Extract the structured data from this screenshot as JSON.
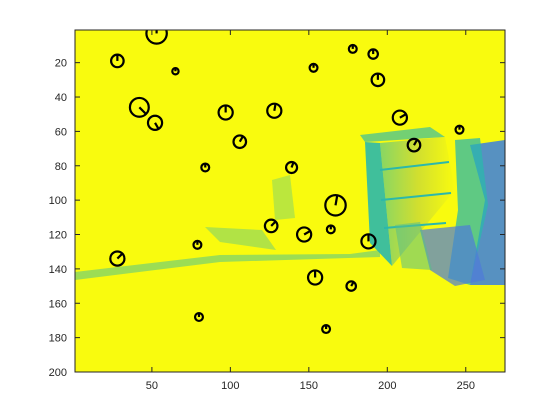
{
  "figure": {
    "background_color": "#ffffff",
    "axes_color": "#262626",
    "colormap_dominant": "#f9fb0e",
    "colormap_low": "#3e26a8",
    "colormap_mid": "#2bb8ab"
  },
  "chart_data": {
    "type": "heatmap",
    "title": "",
    "xlabel": "",
    "ylabel": "",
    "xlim": [
      1,
      275
    ],
    "ylim": [
      1,
      200
    ],
    "y_axis_direction": "reversed",
    "x_ticks": [
      50,
      100,
      150,
      200,
      250
    ],
    "x_tick_labels": [
      "50",
      "100",
      "150",
      "200",
      "250"
    ],
    "y_ticks": [
      20,
      40,
      60,
      80,
      100,
      120,
      140,
      160,
      180,
      200
    ],
    "y_tick_labels": [
      "20",
      "40",
      "60",
      "80",
      "100",
      "120",
      "140",
      "160",
      "180",
      "200"
    ],
    "grid": false,
    "image_content": "mostly yellow scaled image of a bedroom scene with a chest of drawers on the right; teal and blue patches near the dresser and lower right",
    "overlay": {
      "type": "scatter",
      "marker": "circle with radial orientation line",
      "marker_color": "#000000",
      "points": [
        {
          "x": 53,
          "y": 3,
          "r": 6.5,
          "angle": 90
        },
        {
          "x": 28,
          "y": 19,
          "r": 4,
          "angle": 90
        },
        {
          "x": 65,
          "y": 25,
          "r": 2,
          "angle": 90
        },
        {
          "x": 42,
          "y": 46,
          "r": 6,
          "angle": -45
        },
        {
          "x": 52,
          "y": 55,
          "r": 4.5,
          "angle": -60
        },
        {
          "x": 97,
          "y": 49,
          "r": 4.5,
          "angle": 90
        },
        {
          "x": 128,
          "y": 48,
          "r": 4.5,
          "angle": 80
        },
        {
          "x": 106,
          "y": 66,
          "r": 4,
          "angle": 60
        },
        {
          "x": 84,
          "y": 81,
          "r": 2.5,
          "angle": 90
        },
        {
          "x": 139,
          "y": 81,
          "r": 3.5,
          "angle": 70
        },
        {
          "x": 167,
          "y": 103,
          "r": 6.5,
          "angle": 80
        },
        {
          "x": 126,
          "y": 115,
          "r": 4,
          "angle": 45
        },
        {
          "x": 147,
          "y": 120,
          "r": 4.5,
          "angle": 30
        },
        {
          "x": 188,
          "y": 124,
          "r": 4.5,
          "angle": 90
        },
        {
          "x": 28,
          "y": 134,
          "r": 4.5,
          "angle": 45
        },
        {
          "x": 154,
          "y": 145,
          "r": 4.5,
          "angle": 90
        },
        {
          "x": 177,
          "y": 150,
          "r": 3,
          "angle": 60
        },
        {
          "x": 208,
          "y": 52,
          "r": 4.5,
          "angle": 30
        },
        {
          "x": 217,
          "y": 68,
          "r": 4,
          "angle": 60
        },
        {
          "x": 194,
          "y": 30,
          "r": 4,
          "angle": 90
        },
        {
          "x": 191,
          "y": 15,
          "r": 3,
          "angle": 90
        },
        {
          "x": 178,
          "y": 12,
          "r": 2.5,
          "angle": 90
        },
        {
          "x": 153,
          "y": 23,
          "r": 2.5,
          "angle": 90
        },
        {
          "x": 246,
          "y": 59,
          "r": 2.5,
          "angle": 90
        },
        {
          "x": 79,
          "y": 126,
          "r": 2.5,
          "angle": 90
        },
        {
          "x": 164,
          "y": 117,
          "r": 2.5,
          "angle": 90
        },
        {
          "x": 161,
          "y": 175,
          "r": 2.5,
          "angle": 90
        },
        {
          "x": 80,
          "y": 168,
          "r": 2.5,
          "angle": 90
        }
      ]
    }
  }
}
